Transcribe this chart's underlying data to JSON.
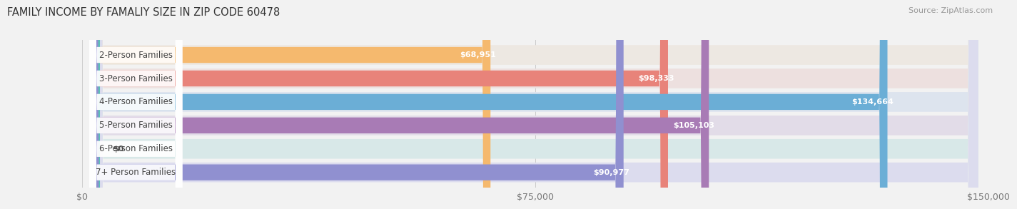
{
  "title": "FAMILY INCOME BY FAMALIY SIZE IN ZIP CODE 60478",
  "source": "Source: ZipAtlas.com",
  "categories": [
    "2-Person Families",
    "3-Person Families",
    "4-Person Families",
    "5-Person Families",
    "6-Person Families",
    "7+ Person Families"
  ],
  "values": [
    68951,
    98333,
    134664,
    105103,
    0,
    90977
  ],
  "bar_colors": [
    "#F5B96E",
    "#E8837A",
    "#6BAED6",
    "#A87BB5",
    "#5BBFB5",
    "#9090D0"
  ],
  "bar_bg_colors": [
    "#EDE8E2",
    "#EDE0DF",
    "#DDE4EE",
    "#E2DCE8",
    "#D8E8E8",
    "#DCDCEE"
  ],
  "value_labels": [
    "$68,951",
    "$98,333",
    "$134,664",
    "$105,103",
    "$0",
    "$90,977"
  ],
  "xlim": [
    0,
    150000
  ],
  "xticks": [
    0,
    75000,
    150000
  ],
  "xticklabels": [
    "$0",
    "$75,000",
    "$150,000"
  ],
  "background_color": "#F2F2F2",
  "title_fontsize": 10.5,
  "source_fontsize": 8,
  "label_fontsize": 8.5,
  "value_fontsize": 8
}
